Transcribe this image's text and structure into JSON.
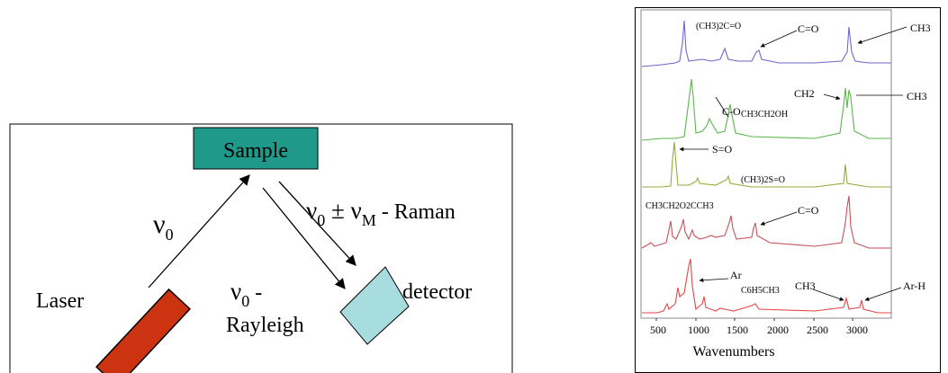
{
  "diagram": {
    "sample_label": "Sample",
    "laser_label": "Laser",
    "detector_label": "detector",
    "incident_freq": {
      "base": "ν",
      "sub": "0"
    },
    "raman_label": {
      "base": "ν",
      "sub": "0",
      "op": " ± ν",
      "sub2": "M",
      "tail": " - Raman"
    },
    "rayleigh_label": {
      "base": "ν",
      "sub": "0",
      "dash": " -",
      "line2": "Rayleigh"
    },
    "colors": {
      "sample_fill": "#1f9a8a",
      "laser_fill": "#cc3311",
      "detector_fill": "#a8dde0"
    }
  },
  "spectra": {
    "xlabel": "Wavenumbers",
    "tick_labels": [
      "500",
      "1000",
      "1500",
      "2000",
      "2500",
      "3000"
    ],
    "traces": [
      {
        "color": "#6a6acb",
        "compound": "(CH3)2C=O"
      },
      {
        "color": "#5cb84c",
        "compound": "CH3CH2OH"
      },
      {
        "color": "#8fad3a",
        "compound": "(CH3)2S=O"
      },
      {
        "color": "#c8505a",
        "compound": "CH3CH2O2CCH3"
      },
      {
        "color": "#e04848",
        "compound": "C6H5CH3"
      }
    ],
    "annotations": {
      "co_double_1": "C=O",
      "ch3_1": "CH3",
      "c_o": "C-O",
      "ch2": "CH2",
      "ch3_2": "CH3",
      "s_o": "S=O",
      "co_double_2": "C=O",
      "ar": "Ar",
      "ch3_3": "CH3",
      "ar_h": "Ar-H"
    }
  }
}
